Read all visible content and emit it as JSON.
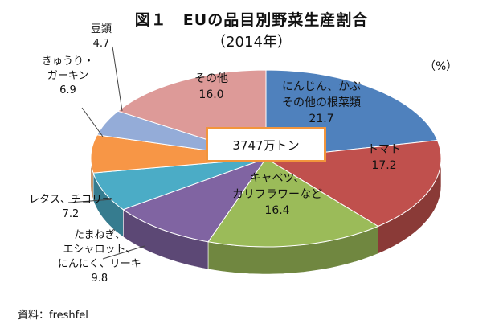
{
  "title": "図１　EUの品目別野菜生産割合",
  "subtitle": "（2014年）",
  "unit_label": "（%）",
  "source": "資料：freshfel",
  "total_label": "3747万トン",
  "chart_data": {
    "type": "pie",
    "style": "3d",
    "start_angle_deg": 0,
    "direction": "clockwise",
    "series": [
      {
        "name": "にんじん、かぶ その他の根菜類",
        "label_lines": [
          "にんじん、かぶ",
          "その他の根菜類"
        ],
        "value": 21.7,
        "value_label": "21.7",
        "color": "#4f81bd"
      },
      {
        "name": "トマト",
        "label_lines": [
          "トマト"
        ],
        "value": 17.2,
        "value_label": "17.2",
        "color": "#c0504d"
      },
      {
        "name": "キャベツ、カリフラワーなど",
        "label_lines": [
          "キャベツ、",
          "カリフラワーなど"
        ],
        "value": 16.4,
        "value_label": "16.4",
        "color": "#9bbb59"
      },
      {
        "name": "たまねぎ、エシャロット、にんにく、リーキ",
        "label_lines": [
          "たまねぎ、",
          "エシャロット、",
          "にんにく、リーキ"
        ],
        "value": 9.8,
        "value_label": "9.8",
        "color": "#8064a2"
      },
      {
        "name": "レタス、チコリー",
        "label_lines": [
          "レタス、チコリー"
        ],
        "value": 7.2,
        "value_label": "7.2",
        "color": "#4bacc6"
      },
      {
        "name": "きゅうり・ガーキン",
        "label_lines": [
          "きゅうり・",
          "ガーキン"
        ],
        "value": 6.9,
        "value_label": "6.9",
        "color": "#f79646"
      },
      {
        "name": "豆類",
        "label_lines": [
          "豆類"
        ],
        "value": 4.7,
        "value_label": "4.7",
        "color": "#94acd8"
      },
      {
        "name": "その他",
        "label_lines": [
          "その他"
        ],
        "value": 16.0,
        "value_label": "16.0",
        "color": "#dd9a98"
      }
    ]
  }
}
